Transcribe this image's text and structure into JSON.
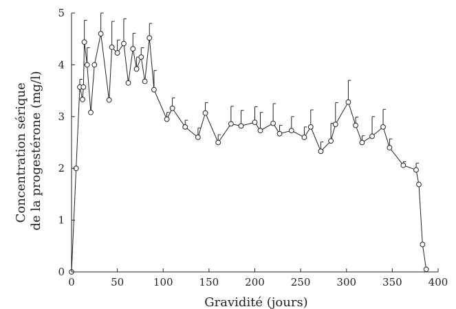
{
  "chart_data": {
    "type": "scatter",
    "title": "",
    "xlabel": "Gravidité (jours)",
    "ylabel": [
      "Concentration sérique",
      "de la progestérone (mg/l)"
    ],
    "xlim": [
      0,
      400
    ],
    "ylim": [
      0,
      5
    ],
    "xticks": [
      0,
      50,
      100,
      150,
      200,
      250,
      300,
      350,
      400
    ],
    "yticks": [
      0,
      1,
      2,
      3,
      4,
      5
    ],
    "grid": false,
    "legend": "none",
    "marker": "open-circle",
    "line_color": "#231f20",
    "marker_fill": "#ffffff",
    "series": [
      {
        "points": [
          {
            "x": 0,
            "y": 0
          },
          {
            "x": 5,
            "y": 2.0
          },
          {
            "x": 9,
            "y": 3.57,
            "err": 0.15
          },
          {
            "x": 12,
            "y": 3.33
          },
          {
            "x": 13,
            "y": 3.57
          },
          {
            "x": 14,
            "y": 4.44,
            "err": 0.42
          },
          {
            "x": 17,
            "y": 4.0,
            "err": 0.33
          },
          {
            "x": 21,
            "y": 3.08
          },
          {
            "x": 25,
            "y": 4.0
          },
          {
            "x": 32,
            "y": 4.6,
            "err": 0.4
          },
          {
            "x": 41,
            "y": 3.32
          },
          {
            "x": 44,
            "y": 4.34,
            "err": 0.5
          },
          {
            "x": 50,
            "y": 4.23,
            "err": 0.25
          },
          {
            "x": 57,
            "y": 4.41,
            "err": 0.48
          },
          {
            "x": 62,
            "y": 3.65
          },
          {
            "x": 67,
            "y": 4.31,
            "err": 0.3
          },
          {
            "x": 71,
            "y": 3.92,
            "err": 0.23
          },
          {
            "x": 76,
            "y": 4.15,
            "err": 0.18
          },
          {
            "x": 80,
            "y": 3.68
          },
          {
            "x": 85,
            "y": 4.52,
            "err": 0.28
          },
          {
            "x": 90,
            "y": 3.52,
            "err": 0.37
          },
          {
            "x": 104,
            "y": 2.95,
            "err": 0.13
          },
          {
            "x": 110,
            "y": 3.16,
            "err": 0.2
          },
          {
            "x": 124,
            "y": 2.8,
            "err": 0.13
          },
          {
            "x": 138,
            "y": 2.6,
            "err": 0.18
          },
          {
            "x": 146,
            "y": 3.07,
            "err": 0.2
          },
          {
            "x": 160,
            "y": 2.5,
            "err": 0.15
          },
          {
            "x": 174,
            "y": 2.86,
            "err": 0.34
          },
          {
            "x": 185,
            "y": 2.82,
            "err": 0.3
          },
          {
            "x": 200,
            "y": 2.89,
            "err": 0.3
          },
          {
            "x": 206,
            "y": 2.73,
            "err": 0.35
          },
          {
            "x": 220,
            "y": 2.87,
            "err": 0.38
          },
          {
            "x": 227,
            "y": 2.67,
            "err": 0.16
          },
          {
            "x": 240,
            "y": 2.73,
            "err": 0.27
          },
          {
            "x": 254,
            "y": 2.6,
            "err": 0.2
          },
          {
            "x": 261,
            "y": 2.8,
            "err": 0.33
          },
          {
            "x": 272,
            "y": 2.33,
            "err": 0.18
          },
          {
            "x": 283,
            "y": 2.53,
            "err": 0.34
          },
          {
            "x": 288,
            "y": 2.85,
            "err": 0.42
          },
          {
            "x": 302,
            "y": 3.28,
            "err": 0.42
          },
          {
            "x": 310,
            "y": 2.83,
            "err": 0.16
          },
          {
            "x": 317,
            "y": 2.5,
            "err": 0.13
          },
          {
            "x": 328,
            "y": 2.62,
            "err": 0.38
          },
          {
            "x": 340,
            "y": 2.8,
            "err": 0.34
          },
          {
            "x": 347,
            "y": 2.4,
            "err": 0.17
          },
          {
            "x": 362,
            "y": 2.06,
            "err": 0.07
          },
          {
            "x": 376,
            "y": 1.97,
            "err": 0.13
          },
          {
            "x": 379,
            "y": 1.69
          },
          {
            "x": 383,
            "y": 0.53
          },
          {
            "x": 387,
            "y": 0.05
          }
        ]
      }
    ]
  }
}
